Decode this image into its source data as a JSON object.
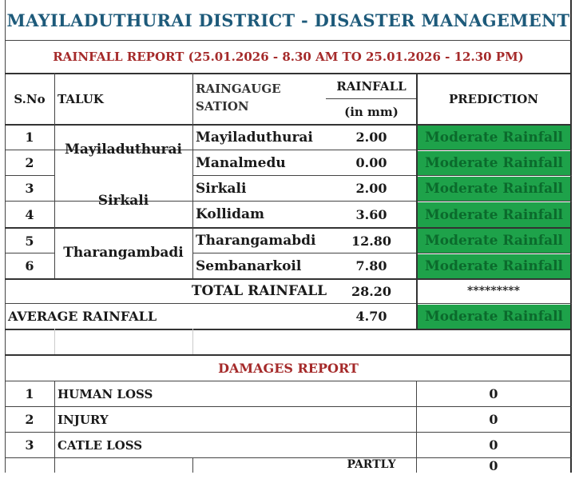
{
  "header": {
    "title": "MAYILADUTHURAI DISTRICT - DISASTER MANAGEMENT",
    "subtitle": "RAINFALL REPORT (25.01.2026 - 8.30 AM TO 25.01.2026 - 12.30 PM)"
  },
  "columns": {
    "sno": "S.No",
    "taluk": "TALUK",
    "station_line1": "RAINGAUGE",
    "station_line2": "SATION",
    "rainfall": "RAINFALL",
    "unit": "(in mm)",
    "prediction": "PREDICTION"
  },
  "taluks": [
    "Mayiladuthurai",
    "Sirkali",
    "Tharangambadi"
  ],
  "rows": [
    {
      "sno": "1",
      "station": "Mayiladuthurai",
      "rainfall": "2.00",
      "prediction": "Moderate Rainfall"
    },
    {
      "sno": "2",
      "station": "Manalmedu",
      "rainfall": "0.00",
      "prediction": "Moderate Rainfall"
    },
    {
      "sno": "3",
      "station": "Sirkali",
      "rainfall": "2.00",
      "prediction": "Moderate Rainfall"
    },
    {
      "sno": "4",
      "station": "Kollidam",
      "rainfall": "3.60",
      "prediction": "Moderate Rainfall"
    },
    {
      "sno": "5",
      "station": "Tharangamabdi",
      "rainfall": "12.80",
      "prediction": "Moderate Rainfall"
    },
    {
      "sno": "6",
      "station": "Sembanarkoil",
      "rainfall": "7.80",
      "prediction": "Moderate Rainfall"
    }
  ],
  "total": {
    "label": "TOTAL RAINFALL",
    "value": "28.20",
    "prediction": "*********"
  },
  "average": {
    "label": "AVERAGE RAINFALL",
    "value": "4.70",
    "prediction": "Moderate Rainfall"
  },
  "damages": {
    "title": "DAMAGES REPORT",
    "rows": [
      {
        "sno": "1",
        "item": "HUMAN LOSS",
        "value": "0"
      },
      {
        "sno": "2",
        "item": "INJURY",
        "value": "0"
      },
      {
        "sno": "3",
        "item": "CATLE LOSS",
        "value": "0"
      }
    ],
    "partly_label": "PARTLY",
    "partly_value": "0"
  },
  "colors": {
    "green": "#1ea24a",
    "title_blue": "#1d5a7a",
    "red": "#a52a2a"
  }
}
